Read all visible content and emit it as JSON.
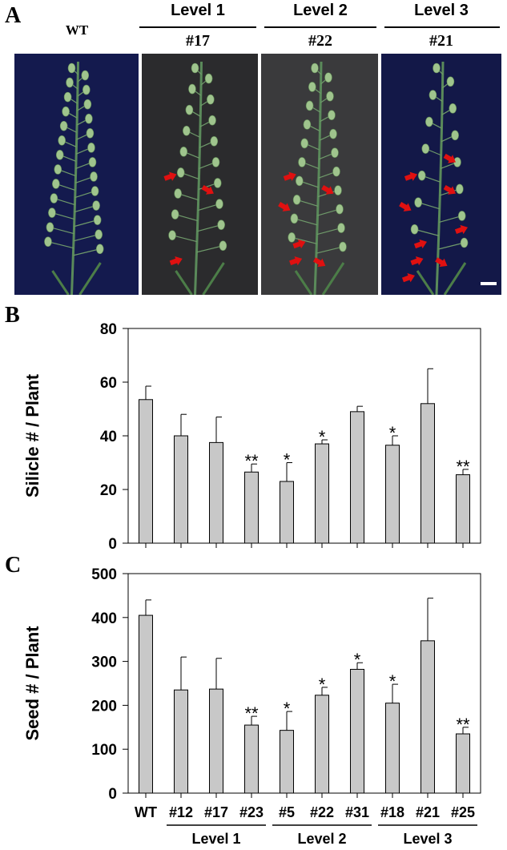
{
  "panels": {
    "a": "A",
    "b": "B",
    "c": "C"
  },
  "photo_headers": {
    "wt": "WT",
    "levels": [
      "Level 1",
      "Level 2",
      "Level 3"
    ],
    "lines": [
      "#17",
      "#22",
      "#21"
    ]
  },
  "photos": [
    {
      "name": "WT",
      "background": "#141a4e",
      "arrows": 0
    },
    {
      "name": "#17",
      "background": "#2b2b2d",
      "arrows": 3
    },
    {
      "name": "#22",
      "background": "#3a3a3c",
      "arrows": 6
    },
    {
      "name": "#21",
      "background": "#131848",
      "arrows": 9
    }
  ],
  "colors": {
    "bar": "#c8c8c8",
    "bar_stroke": "#000000",
    "arrow": "#e01010"
  },
  "chart_data": [
    {
      "type": "bar",
      "panel": "B",
      "ylabel": "Silicle # / Plant",
      "ylim": [
        0,
        80
      ],
      "yticks": [
        0,
        20,
        40,
        60,
        80
      ],
      "categories": [
        "WT",
        "#12",
        "#17",
        "#23",
        "#5",
        "#22",
        "#31",
        "#18",
        "#21",
        "#25"
      ],
      "values": [
        53.5,
        40,
        37.5,
        26.5,
        23,
        37,
        49,
        36.5,
        52,
        25.5
      ],
      "errors": [
        5,
        8,
        9.5,
        3,
        7,
        1.5,
        2,
        3.5,
        13,
        2
      ],
      "significance": [
        "",
        "",
        "",
        "**",
        "*",
        "*",
        "",
        "*",
        "",
        "**"
      ]
    },
    {
      "type": "bar",
      "panel": "C",
      "ylabel": "Seed # / Plant",
      "ylim": [
        0,
        500
      ],
      "yticks": [
        0,
        100,
        200,
        300,
        400,
        500
      ],
      "categories": [
        "WT",
        "#12",
        "#17",
        "#23",
        "#5",
        "#22",
        "#31",
        "#18",
        "#21",
        "#25"
      ],
      "values": [
        405,
        235,
        237,
        155,
        143,
        223,
        282,
        205,
        347,
        135
      ],
      "errors": [
        35,
        75,
        70,
        20,
        43,
        18,
        15,
        43,
        97,
        15
      ],
      "significance": [
        "",
        "",
        "",
        "**",
        "*",
        "*",
        "*",
        "*",
        "",
        "**"
      ],
      "groups": [
        {
          "label": "Level 1",
          "from": 1,
          "to": 3
        },
        {
          "label": "Level 2",
          "from": 4,
          "to": 6
        },
        {
          "label": "Level 3",
          "from": 7,
          "to": 9
        }
      ]
    }
  ]
}
